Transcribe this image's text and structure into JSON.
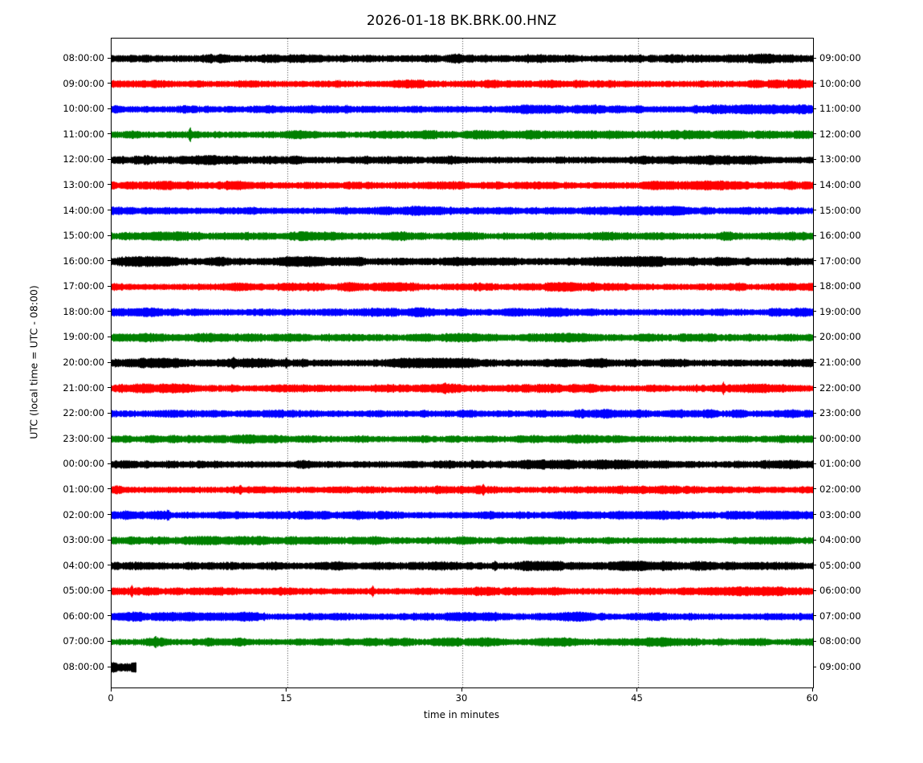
{
  "chart_data": {
    "type": "line",
    "variant": "helicorder-dayplot",
    "title": "2026-01-18 BK.BRK.00.HNZ",
    "xlabel": "time in minutes",
    "ylabel": "UTC (local time = UTC - 08:00)",
    "x_range": [
      0,
      60
    ],
    "x_ticks": [
      0,
      15,
      30,
      45,
      60
    ],
    "grid_minutes": [
      15,
      30,
      45
    ],
    "grid_style": "dotted",
    "legend": "none",
    "trace_color_cycle": [
      "black",
      "red",
      "blue",
      "green"
    ],
    "colors": {
      "black": "#000000",
      "red": "#ff0000",
      "blue": "#0000ff",
      "green": "#008000"
    },
    "rows": [
      {
        "left": "08:00:00",
        "right": "09:00:00",
        "color": "black",
        "end": 60,
        "amp": 3.6,
        "spikes": []
      },
      {
        "left": "09:00:00",
        "right": "10:00:00",
        "color": "red",
        "end": 60,
        "amp": 3.3,
        "spikes": []
      },
      {
        "left": "10:00:00",
        "right": "11:00:00",
        "color": "blue",
        "end": 60,
        "amp": 3.4,
        "spikes": []
      },
      {
        "left": "11:00:00",
        "right": "12:00:00",
        "color": "green",
        "end": 60,
        "amp": 3.2,
        "spikes": [
          [
            6.7,
            5
          ]
        ]
      },
      {
        "left": "12:00:00",
        "right": "13:00:00",
        "color": "black",
        "end": 60,
        "amp": 3.5,
        "spikes": []
      },
      {
        "left": "13:00:00",
        "right": "14:00:00",
        "color": "red",
        "end": 60,
        "amp": 3.4,
        "spikes": []
      },
      {
        "left": "14:00:00",
        "right": "15:00:00",
        "color": "blue",
        "end": 60,
        "amp": 3.4,
        "spikes": []
      },
      {
        "left": "15:00:00",
        "right": "16:00:00",
        "color": "green",
        "end": 60,
        "amp": 3.3,
        "spikes": []
      },
      {
        "left": "16:00:00",
        "right": "17:00:00",
        "color": "black",
        "end": 60,
        "amp": 3.8,
        "spikes": []
      },
      {
        "left": "17:00:00",
        "right": "18:00:00",
        "color": "red",
        "end": 60,
        "amp": 3.3,
        "spikes": [
          [
            31.5,
            2
          ]
        ]
      },
      {
        "left": "18:00:00",
        "right": "19:00:00",
        "color": "blue",
        "end": 60,
        "amp": 3.4,
        "spikes": []
      },
      {
        "left": "19:00:00",
        "right": "20:00:00",
        "color": "green",
        "end": 60,
        "amp": 3.2,
        "spikes": []
      },
      {
        "left": "20:00:00",
        "right": "21:00:00",
        "color": "black",
        "end": 60,
        "amp": 3.6,
        "spikes": [
          [
            10.4,
            3
          ],
          [
            14.9,
            3
          ]
        ]
      },
      {
        "left": "21:00:00",
        "right": "22:00:00",
        "color": "red",
        "end": 60,
        "amp": 3.3,
        "spikes": [
          [
            28.5,
            2.5
          ],
          [
            52.3,
            4.5
          ]
        ]
      },
      {
        "left": "22:00:00",
        "right": "23:00:00",
        "color": "blue",
        "end": 60,
        "amp": 3.4,
        "spikes": [
          [
            40.3,
            2
          ]
        ]
      },
      {
        "left": "23:00:00",
        "right": "00:00:00",
        "color": "green",
        "end": 60,
        "amp": 3.2,
        "spikes": []
      },
      {
        "left": "00:00:00",
        "right": "01:00:00",
        "color": "black",
        "end": 60,
        "amp": 3.5,
        "spikes": [
          [
            30.8,
            2
          ]
        ]
      },
      {
        "left": "01:00:00",
        "right": "02:00:00",
        "color": "red",
        "end": 60,
        "amp": 3.2,
        "spikes": [
          [
            11,
            2
          ],
          [
            31.8,
            2.5
          ]
        ]
      },
      {
        "left": "02:00:00",
        "right": "03:00:00",
        "color": "blue",
        "end": 60,
        "amp": 3.4,
        "spikes": [
          [
            4.8,
            2
          ]
        ]
      },
      {
        "left": "03:00:00",
        "right": "04:00:00",
        "color": "green",
        "end": 60,
        "amp": 3.2,
        "spikes": []
      },
      {
        "left": "04:00:00",
        "right": "05:00:00",
        "color": "black",
        "end": 60,
        "amp": 3.6,
        "spikes": [
          [
            32.8,
            2
          ]
        ]
      },
      {
        "left": "05:00:00",
        "right": "06:00:00",
        "color": "red",
        "end": 60,
        "amp": 3.3,
        "spikes": [
          [
            1.7,
            3.5
          ],
          [
            22.3,
            3.5
          ]
        ]
      },
      {
        "left": "06:00:00",
        "right": "07:00:00",
        "color": "blue",
        "end": 60,
        "amp": 3.4,
        "spikes": [
          [
            13,
            2
          ]
        ]
      },
      {
        "left": "07:00:00",
        "right": "08:00:00",
        "color": "green",
        "end": 60,
        "amp": 3.3,
        "spikes": [
          [
            3.7,
            3
          ]
        ]
      },
      {
        "left": "08:00:00",
        "right": "09:00:00",
        "color": "black",
        "end": 2.1,
        "amp": 5.0,
        "spikes": []
      }
    ]
  }
}
